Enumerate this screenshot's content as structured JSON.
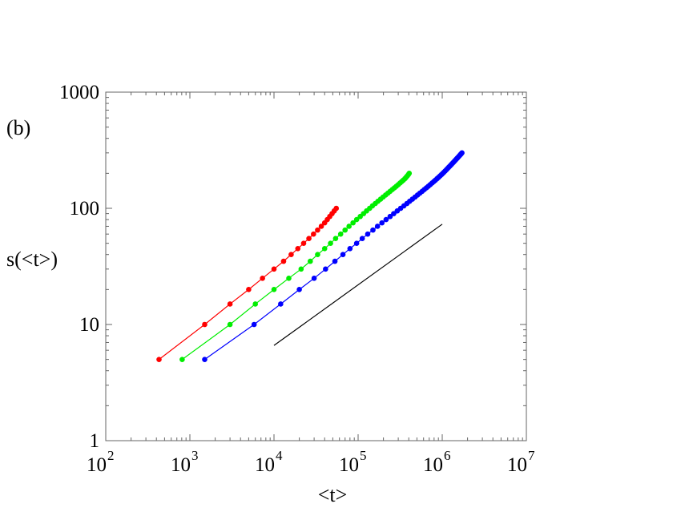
{
  "panel_label": "(b)",
  "chart_data": {
    "type": "line",
    "title": "",
    "xlabel": "<t>",
    "ylabel": "s(<t>)",
    "x_scale": "log",
    "y_scale": "log",
    "xlim": [
      100,
      10000000
    ],
    "ylim": [
      1,
      1000
    ],
    "x_ticks": [
      {
        "base": "10",
        "exp": "2",
        "value": 100
      },
      {
        "base": "10",
        "exp": "3",
        "value": 1000
      },
      {
        "base": "10",
        "exp": "4",
        "value": 10000
      },
      {
        "base": "10",
        "exp": "5",
        "value": 100000
      },
      {
        "base": "10",
        "exp": "6",
        "value": 1000000
      },
      {
        "base": "10",
        "exp": "7",
        "value": 10000000
      }
    ],
    "y_ticks": [
      {
        "label": "1",
        "value": 1
      },
      {
        "label": "10",
        "value": 10
      },
      {
        "label": "100",
        "value": 100
      },
      {
        "label": "1000",
        "value": 1000
      }
    ],
    "grid": false,
    "series": [
      {
        "color": "#ff0000",
        "marker": "circle",
        "points": [
          [
            430,
            5
          ],
          [
            1500,
            10
          ],
          [
            3000,
            15
          ],
          [
            5000,
            20
          ],
          [
            7300,
            25
          ],
          [
            10000,
            30
          ],
          [
            13000,
            35
          ],
          [
            16000,
            40
          ],
          [
            19200,
            45
          ],
          [
            22500,
            50
          ],
          [
            26000,
            55
          ],
          [
            29500,
            60
          ],
          [
            33000,
            65
          ],
          [
            36500,
            70
          ],
          [
            40000,
            75
          ],
          [
            43000,
            80
          ],
          [
            46000,
            85
          ],
          [
            49000,
            90
          ],
          [
            52000,
            95
          ],
          [
            55000,
            100
          ]
        ]
      },
      {
        "color": "#00ee00",
        "marker": "circle",
        "points": [
          [
            810,
            5
          ],
          [
            3000,
            10
          ],
          [
            6000,
            15
          ],
          [
            10000,
            20
          ],
          [
            15000,
            25
          ],
          [
            21000,
            30
          ],
          [
            27000,
            35
          ],
          [
            33000,
            40
          ],
          [
            40000,
            45
          ],
          [
            47000,
            50
          ],
          [
            54000,
            55
          ],
          [
            62000,
            60
          ],
          [
            70000,
            65
          ],
          [
            78000,
            70
          ],
          [
            87000,
            75
          ],
          [
            96000,
            80
          ],
          [
            106000,
            85
          ],
          [
            116000,
            90
          ],
          [
            126000,
            95
          ],
          [
            137000,
            100
          ],
          [
            148000,
            105
          ],
          [
            160000,
            110
          ],
          [
            172000,
            115
          ],
          [
            185000,
            120
          ],
          [
            198000,
            125
          ],
          [
            212000,
            130
          ],
          [
            226000,
            135
          ],
          [
            240000,
            140
          ],
          [
            255000,
            145
          ],
          [
            270000,
            150
          ],
          [
            285000,
            155
          ],
          [
            300000,
            160
          ],
          [
            315000,
            165
          ],
          [
            330000,
            170
          ],
          [
            345000,
            175
          ],
          [
            360000,
            180
          ],
          [
            372000,
            185
          ],
          [
            384000,
            190
          ],
          [
            395000,
            195
          ],
          [
            405000,
            200
          ]
        ]
      },
      {
        "color": "#0000ff",
        "marker": "circle",
        "points": [
          [
            1500,
            5
          ],
          [
            5800,
            10
          ],
          [
            12000,
            15
          ],
          [
            20000,
            20
          ],
          [
            30000,
            25
          ],
          [
            41000,
            30
          ],
          [
            53000,
            35
          ],
          [
            66000,
            40
          ],
          [
            80000,
            45
          ],
          [
            96000,
            50
          ],
          [
            112000,
            55
          ],
          [
            130000,
            60
          ],
          [
            150000,
            65
          ],
          [
            170000,
            70
          ],
          [
            192000,
            75
          ],
          [
            215000,
            80
          ],
          [
            240000,
            85
          ],
          [
            265000,
            90
          ],
          [
            292000,
            95
          ],
          [
            320000,
            100
          ],
          [
            350000,
            105
          ],
          [
            380000,
            110
          ],
          [
            410000,
            115
          ],
          [
            442000,
            120
          ],
          [
            475000,
            125
          ],
          [
            508000,
            130
          ],
          [
            542000,
            135
          ],
          [
            577000,
            140
          ],
          [
            612000,
            145
          ],
          [
            648000,
            150
          ],
          [
            684000,
            155
          ],
          [
            720000,
            160
          ],
          [
            757000,
            165
          ],
          [
            794000,
            170
          ],
          [
            831000,
            175
          ],
          [
            868000,
            180
          ],
          [
            905000,
            185
          ],
          [
            942000,
            190
          ],
          [
            979000,
            195
          ],
          [
            1015000,
            200
          ],
          [
            1050000,
            205
          ],
          [
            1085000,
            210
          ],
          [
            1120000,
            215
          ],
          [
            1155000,
            220
          ],
          [
            1190000,
            225
          ],
          [
            1225000,
            230
          ],
          [
            1260000,
            235
          ],
          [
            1295000,
            240
          ],
          [
            1330000,
            245
          ],
          [
            1365000,
            250
          ],
          [
            1400000,
            255
          ],
          [
            1435000,
            260
          ],
          [
            1470000,
            265
          ],
          [
            1505000,
            270
          ],
          [
            1540000,
            275
          ],
          [
            1575000,
            280
          ],
          [
            1610000,
            285
          ],
          [
            1645000,
            290
          ],
          [
            1680000,
            295
          ],
          [
            1715000,
            300
          ]
        ]
      },
      {
        "color": "#000000",
        "marker": "none",
        "points": [
          [
            10000,
            6.6
          ],
          [
            1000000,
            73
          ]
        ]
      }
    ]
  }
}
